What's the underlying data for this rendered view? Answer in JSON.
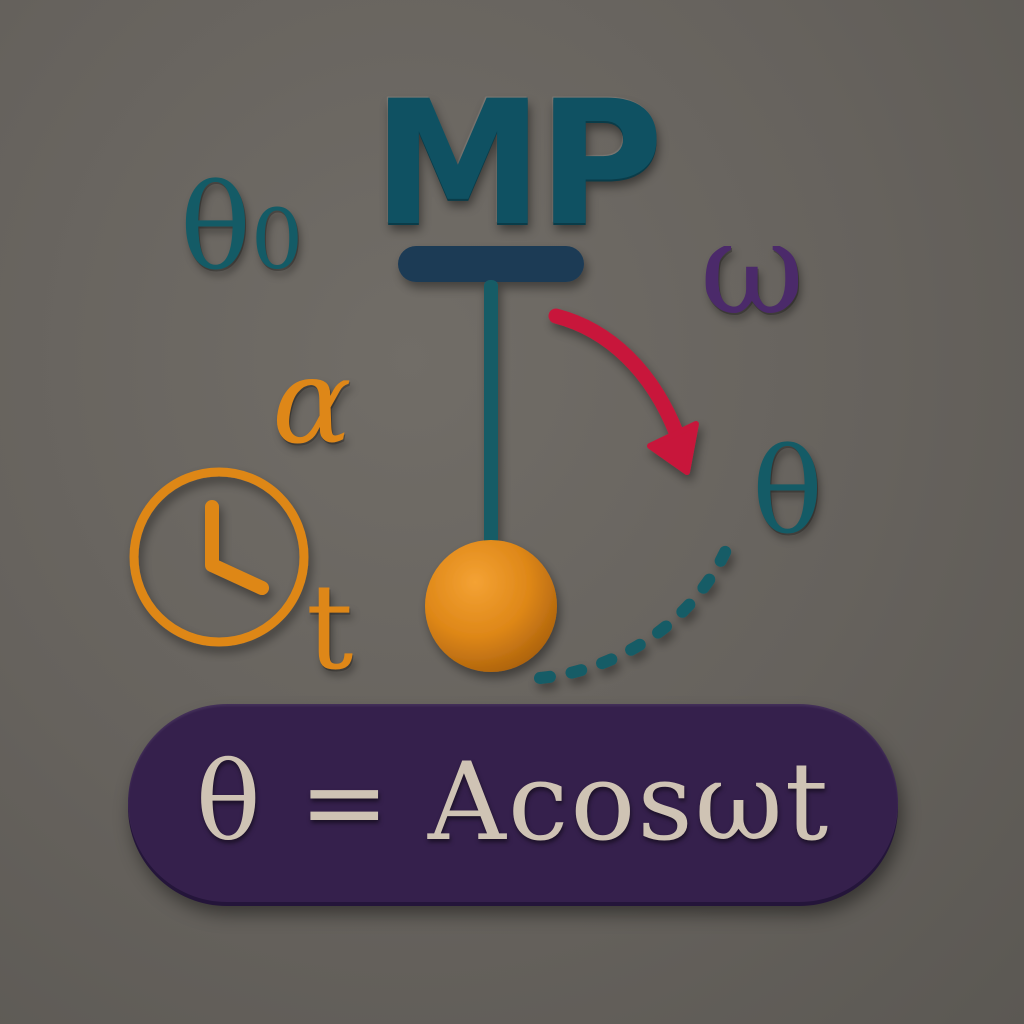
{
  "logo": {
    "text": "MP"
  },
  "symbols": {
    "theta_zero": {
      "base": "θ",
      "subscript": "0"
    },
    "omega": "ω",
    "alpha": "α",
    "theta": "θ",
    "time": "t"
  },
  "equation": {
    "text": "θ = Acosωt"
  },
  "icons": {
    "pendulum": "pendulum-icon",
    "clock": "clock-icon",
    "swing_arrow": "curved-arrow-icon",
    "path": "dotted-path-icon"
  },
  "colors": {
    "background": "#6a6661",
    "teal": "#145b66",
    "navy": "#1f3a55",
    "orange": "#de8718",
    "red": "#c8183a",
    "purple": "#35204c",
    "cream": "#cfc3b4"
  }
}
